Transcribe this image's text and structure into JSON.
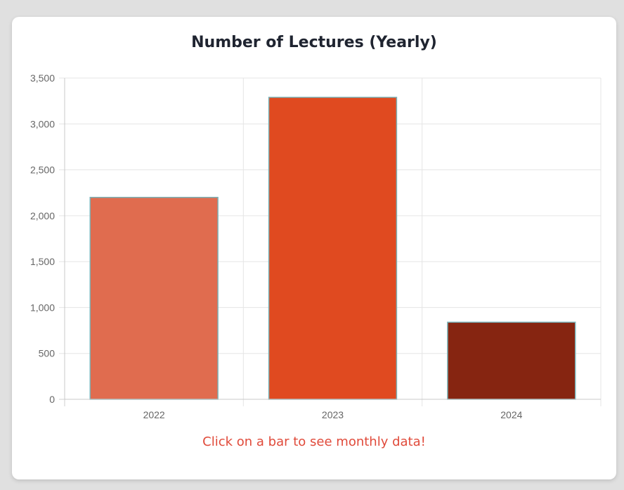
{
  "title": "Number of Lectures (Yearly)",
  "hint": "Click on a bar to see monthly data!",
  "chart_data": {
    "type": "bar",
    "title": "Number of Lectures (Yearly)",
    "xlabel": "",
    "ylabel": "",
    "categories": [
      "2022",
      "2023",
      "2024"
    ],
    "values": [
      2200,
      3290,
      840
    ],
    "colors": [
      "#e06c4f",
      "#e04a20",
      "#862511"
    ],
    "bar_border_color": "#7ab3b8",
    "ylim": [
      0,
      3500
    ],
    "yticks": [
      0,
      500,
      1000,
      1500,
      2000,
      2500,
      3000,
      3500
    ],
    "ytick_labels": [
      "0",
      "500",
      "1,000",
      "1,500",
      "2,000",
      "2,500",
      "3,000",
      "3,500"
    ],
    "grid": true,
    "legend": "none"
  }
}
